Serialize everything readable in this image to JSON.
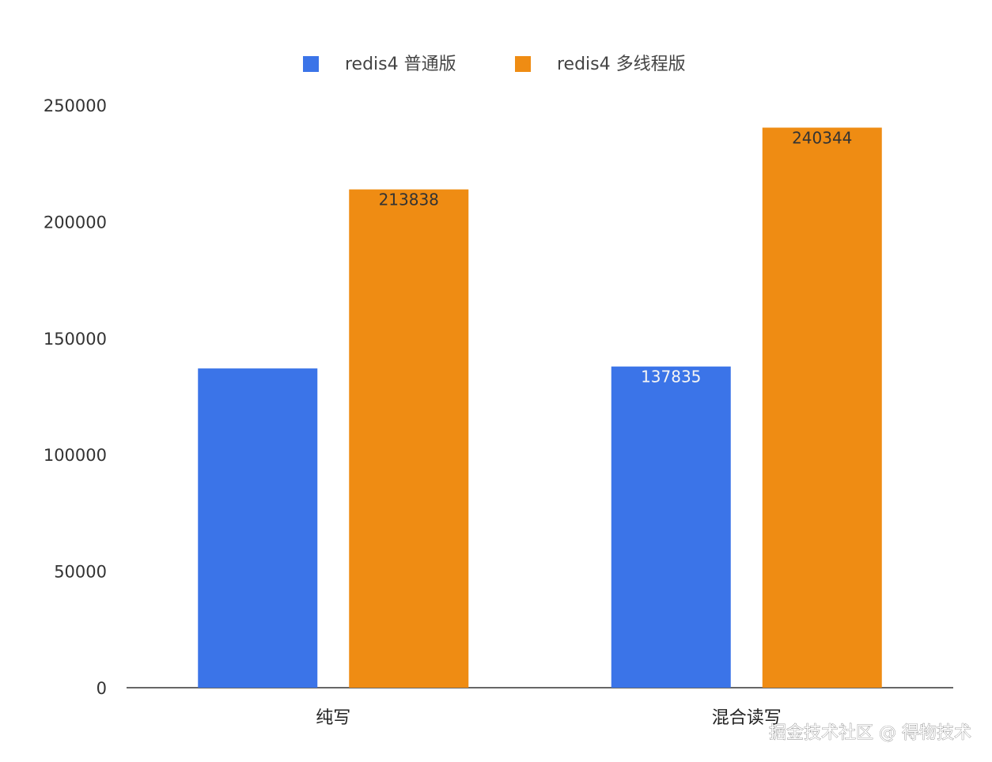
{
  "chart_data": {
    "type": "bar",
    "categories": [
      "纯写",
      "混合读写"
    ],
    "series": [
      {
        "name": "redis4 普通版",
        "color": "#3b74e8",
        "values": [
          137000,
          137835
        ],
        "labels": [
          null,
          "137835"
        ],
        "label_color": "#f5f5f5"
      },
      {
        "name": "redis4 多线程版",
        "color": "#ef8c13",
        "values": [
          213838,
          240344
        ],
        "labels": [
          "213838",
          "240344"
        ],
        "label_color": "#333333"
      }
    ],
    "ylim": [
      0,
      250000
    ],
    "yticks": [
      0,
      50000,
      100000,
      150000,
      200000,
      250000
    ],
    "grid": false,
    "legend_position": "top-center",
    "title": "",
    "xlabel": "",
    "ylabel": ""
  },
  "watermark": "掘金技术社区 @ 得物技术"
}
